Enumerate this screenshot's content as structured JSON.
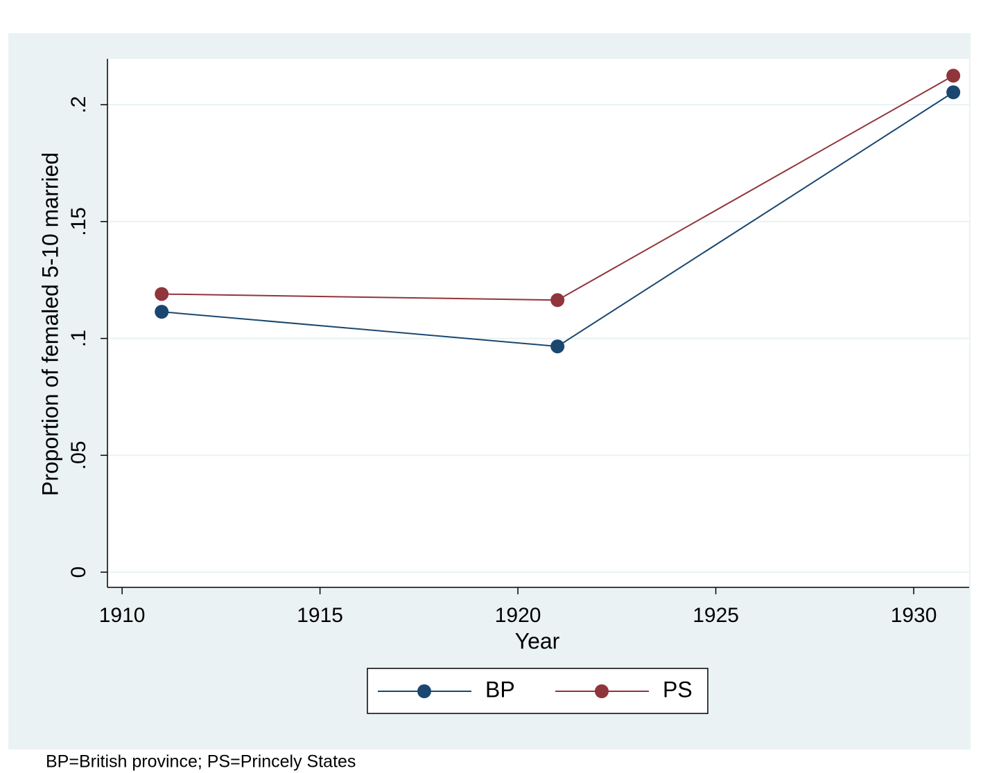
{
  "chart_data": {
    "type": "line",
    "x": [
      1911,
      1921,
      1931
    ],
    "series": [
      {
        "name": "BP",
        "color": "#1a476f",
        "values": [
          0.1114,
          0.0966,
          0.2053
        ]
      },
      {
        "name": "PS",
        "color": "#90353b",
        "values": [
          0.119,
          0.1164,
          0.2124
        ]
      }
    ],
    "xlabel": "Year",
    "ylabel": "Proportion of femaled 5-10 married",
    "xlim": [
      1909.63,
      1931.4
    ],
    "xticks": [
      1910,
      1915,
      1920,
      1925,
      1930
    ],
    "ylim": [
      -0.0065,
      0.2196
    ],
    "yticks": [
      0,
      {
        "value": 0.05,
        "label": ".05"
      },
      {
        "value": 0.1,
        "label": ".1"
      },
      {
        "value": 0.15,
        "label": ".15"
      },
      {
        "value": 0.2,
        "label": ".2"
      }
    ],
    "grid": true,
    "legend": "bottom",
    "note": "BP=British province; PS=Princely States"
  }
}
